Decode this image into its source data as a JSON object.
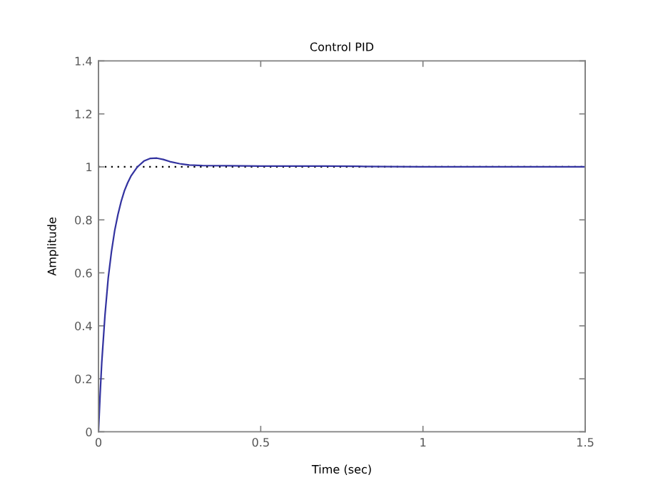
{
  "chart_data": {
    "type": "line",
    "title": "Control PID",
    "xlabel": "Time (sec)",
    "ylabel": "Amplitude",
    "x": [
      0,
      0.005,
      0.01,
      0.02,
      0.03,
      0.04,
      0.05,
      0.06,
      0.07,
      0.08,
      0.09,
      0.1,
      0.12,
      0.14,
      0.16,
      0.18,
      0.2,
      0.22,
      0.25,
      0.28,
      0.32,
      0.4,
      0.5,
      0.6,
      0.7,
      0.8,
      0.9,
      1.0,
      1.2,
      1.5
    ],
    "series": [
      {
        "color": "#3333a0",
        "values": [
          0,
          0.14,
          0.26,
          0.44,
          0.58,
          0.68,
          0.76,
          0.82,
          0.87,
          0.91,
          0.94,
          0.965,
          1.0,
          1.022,
          1.032,
          1.033,
          1.028,
          1.02,
          1.012,
          1.007,
          1.005,
          1.004,
          1.003,
          1.003,
          1.003,
          1.002,
          1.001,
          1.0,
          1.0,
          1.0
        ]
      }
    ],
    "ref_lines": [
      {
        "axis": "y",
        "value": 1,
        "color": "#000000",
        "line_style": "dotted"
      }
    ],
    "xlim": [
      0,
      1.5
    ],
    "ylim": [
      0,
      1.4
    ],
    "xticks": [
      0,
      0.5,
      1,
      1.5
    ],
    "yticks": [
      0,
      0.2,
      0.4,
      0.6,
      0.8,
      1,
      1.2,
      1.4
    ],
    "grid": false,
    "line_style": "solid",
    "marker": "none"
  }
}
